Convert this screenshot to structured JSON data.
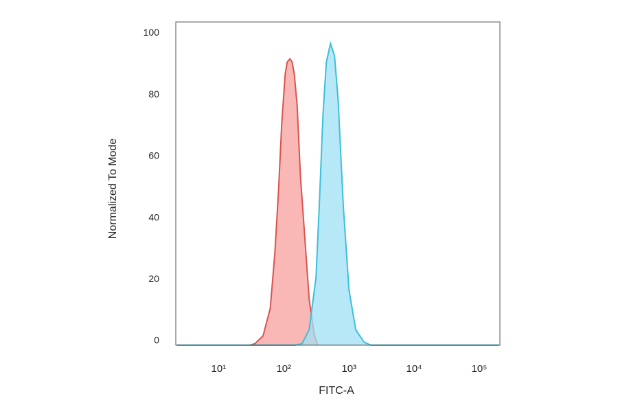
{
  "chart_data": {
    "type": "histogram-overlay",
    "xlabel": "FITC-A",
    "ylabel": "Normalized To Mode",
    "log_x": true,
    "xlim": [
      2.2,
      207000
    ],
    "ylim": [
      0,
      105
    ],
    "xticks": [
      {
        "value": 10,
        "label": "10¹"
      },
      {
        "value": 100,
        "label": "10²"
      },
      {
        "value": 1000,
        "label": "10³"
      },
      {
        "value": 10000,
        "label": "10⁴"
      },
      {
        "value": 100000,
        "label": "10⁵"
      }
    ],
    "yticks": [
      0,
      20,
      40,
      60,
      80,
      100
    ],
    "series": [
      {
        "color": "#d9534f",
        "fill": "#f7a09c",
        "x": [
          30,
          36,
          48,
          62,
          73,
          83,
          93,
          105,
          113,
          124,
          134,
          145,
          160,
          180,
          205,
          245,
          290,
          330
        ],
        "values": [
          0,
          0.5,
          3,
          12,
          30,
          50,
          72,
          88,
          92,
          93,
          92,
          88,
          78,
          55,
          38,
          15,
          4,
          0
        ]
      },
      {
        "color": "#3bbfdc",
        "fill": "#9fe0f4",
        "x": [
          2.3,
          150,
          190,
          245,
          312,
          350,
          400,
          450,
          520,
          600,
          680,
          820,
          1000,
          1270,
          1700,
          2170,
          200000
        ],
        "values": [
          0,
          0,
          0.5,
          5,
          22,
          45,
          75,
          92,
          98,
          94,
          80,
          45,
          18,
          5,
          1,
          0,
          0
        ]
      }
    ]
  }
}
